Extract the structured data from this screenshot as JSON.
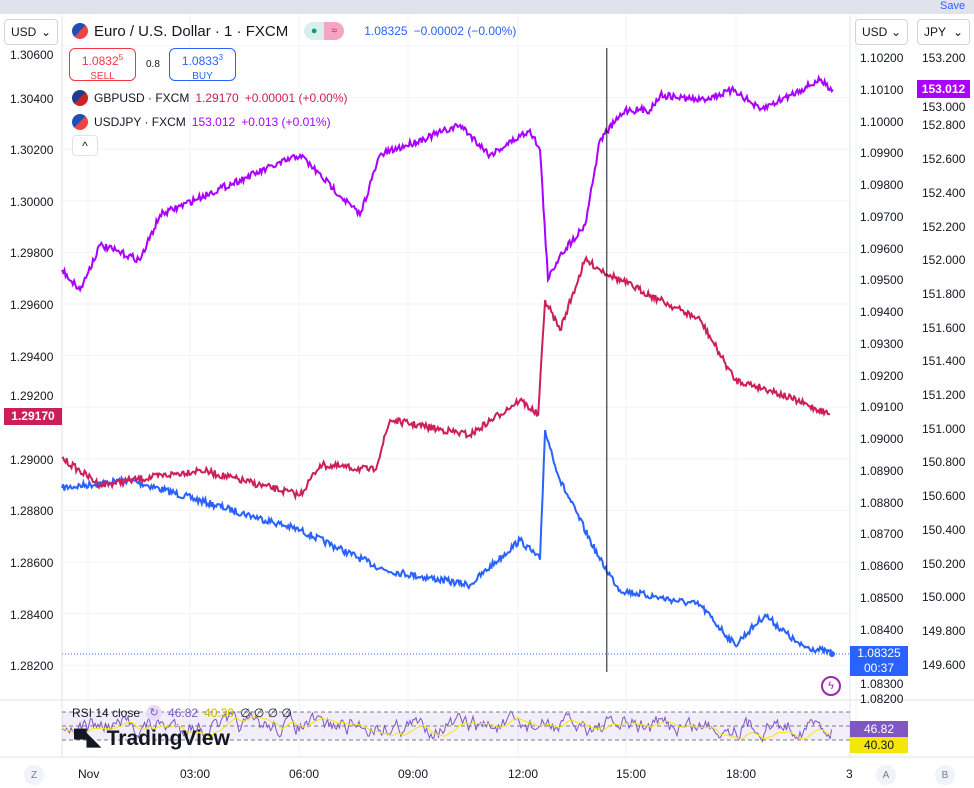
{
  "header": {
    "save_label": "Save",
    "left_currency": "USD",
    "right_currency_1": "USD",
    "right_currency_2": "JPY"
  },
  "main_symbol": {
    "title": "Euro / U.S. Dollar · 1 · FXCM",
    "price": "1.08325",
    "change": "−0.00002 (−0.00%)",
    "status_icon": "market-open-dot",
    "pill_icon": "approx-icon"
  },
  "trade": {
    "sell_price": "1.0832",
    "sell_sup": "5",
    "sell_label": "SELL",
    "spread": "0.8",
    "buy_price": "1.0833",
    "buy_sup": "3",
    "buy_label": "BUY"
  },
  "compare": [
    {
      "symbol": "GBPUSD · FXCM",
      "price": "1.29170",
      "change": "+0.00001 (+0.00%)",
      "color": "#cc1f5a"
    },
    {
      "symbol": "USDJPY · FXCM",
      "price": "153.012",
      "change": "+0.013 (+0.01%)",
      "color": "#aa00ff"
    }
  ],
  "left_axis": [
    "1.30600",
    "1.30400",
    "1.30200",
    "1.30000",
    "1.29800",
    "1.29600",
    "1.29400",
    "1.29200",
    "1.29000",
    "1.28800",
    "1.28600",
    "1.28400",
    "1.28200"
  ],
  "right_axis_1": [
    "1.10200",
    "1.10100",
    "1.10000",
    "1.09900",
    "1.09800",
    "1.09700",
    "1.09600",
    "1.09500",
    "1.09400",
    "1.09300",
    "1.09200",
    "1.09100",
    "1.09000",
    "1.08900",
    "1.08800",
    "1.08700",
    "1.08600",
    "1.08500",
    "1.08400",
    "1.08300",
    "1.08200"
  ],
  "right_axis_2": [
    "153.200",
    "153.000",
    "152.800",
    "152.600",
    "152.400",
    "152.200",
    "152.000",
    "151.800",
    "151.600",
    "151.400",
    "151.200",
    "151.000",
    "150.800",
    "150.600",
    "150.400",
    "150.200",
    "150.000",
    "149.800",
    "149.600"
  ],
  "price_tags": {
    "gbpusd": "1.29170",
    "usdjpy": "153.012",
    "eurusd": "1.08325",
    "countdown": "00:37"
  },
  "time_axis": [
    "Nov",
    "03:00",
    "06:00",
    "09:00",
    "12:00",
    "15:00",
    "18:00",
    "3"
  ],
  "rsi": {
    "label": "RSI 14 close",
    "value": "46.82",
    "ma": "40.30",
    "extra": "∅ ∅ ∅ ∅",
    "tag_value": "46.82",
    "tag_ma": "40.30"
  },
  "logo": "TradingView",
  "corner_buttons": {
    "z": "Z",
    "a": "A",
    "b": "B"
  },
  "chart_data": {
    "type": "line",
    "x_unit": "hours since Nov 00:00",
    "series": [
      {
        "name": "EURUSD",
        "color": "#2962ff",
        "axis": "right1",
        "points": [
          [
            -0.69,
            1.08846
          ],
          [
            1.18,
            1.08871
          ],
          [
            5.87,
            1.08713
          ],
          [
            8.21,
            1.08587
          ],
          [
            10.55,
            1.0854
          ],
          [
            11.93,
            1.08682
          ],
          [
            12.48,
            1.0862
          ],
          [
            12.62,
            1.09028
          ],
          [
            13.03,
            1.0887
          ],
          [
            14.13,
            1.0862
          ],
          [
            14.68,
            1.08524
          ],
          [
            16.89,
            1.08477
          ],
          [
            17.85,
            1.08351
          ],
          [
            18.68,
            1.08446
          ],
          [
            19.64,
            1.0835
          ],
          [
            20.55,
            1.08325
          ]
        ]
      },
      {
        "name": "GBPUSD",
        "color": "#cc1f5a",
        "axis": "left",
        "points": [
          [
            -0.69,
            1.29
          ],
          [
            0.36,
            1.28896
          ],
          [
            3.12,
            1.28954
          ],
          [
            5.87,
            1.28857
          ],
          [
            6.42,
            1.28974
          ],
          [
            7.93,
            1.28954
          ],
          [
            8.35,
            1.29148
          ],
          [
            10.55,
            1.2909
          ],
          [
            11.93,
            1.29226
          ],
          [
            12.43,
            1.29168
          ],
          [
            12.62,
            1.29613
          ],
          [
            13.03,
            1.29497
          ],
          [
            13.72,
            1.29768
          ],
          [
            14.41,
            1.2971
          ],
          [
            15.79,
            1.29613
          ],
          [
            16.89,
            1.29536
          ],
          [
            17.85,
            1.29303
          ],
          [
            18.82,
            1.29264
          ],
          [
            20.47,
            1.2917
          ]
        ]
      },
      {
        "name": "USDJPY",
        "color": "#aa00ff",
        "axis": "right2",
        "points": [
          [
            -0.69,
            151.942
          ],
          [
            -0.19,
            151.823
          ],
          [
            0.36,
            152.09
          ],
          [
            1.46,
            152.001
          ],
          [
            2.01,
            152.268
          ],
          [
            4.21,
            152.476
          ],
          [
            5.87,
            152.624
          ],
          [
            7.52,
            152.268
          ],
          [
            8.07,
            152.624
          ],
          [
            10.28,
            152.802
          ],
          [
            11.1,
            152.624
          ],
          [
            12.2,
            152.773
          ],
          [
            12.48,
            152.654
          ],
          [
            12.7,
            151.883
          ],
          [
            13.03,
            152.031
          ],
          [
            13.72,
            152.209
          ],
          [
            14.13,
            152.713
          ],
          [
            14.82,
            152.891
          ],
          [
            15.51,
            152.891
          ],
          [
            15.79,
            152.98
          ],
          [
            16.89,
            152.95
          ],
          [
            17.85,
            153.01
          ],
          [
            18.54,
            152.891
          ],
          [
            19.37,
            152.98
          ],
          [
            20.19,
            153.069
          ],
          [
            20.55,
            153.012
          ]
        ]
      }
    ],
    "crosshair_hour": 14.32
  }
}
